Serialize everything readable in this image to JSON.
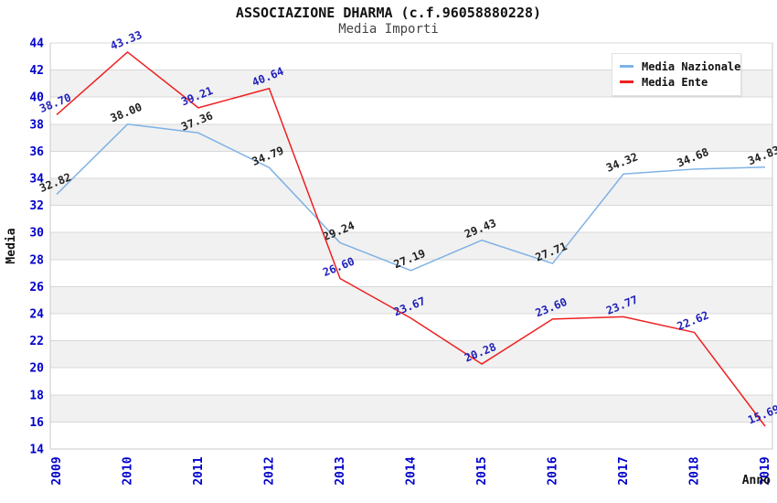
{
  "header": {
    "title": "ASSOCIAZIONE DHARMA (c.f.96058880228)",
    "subtitle": "Media Importi"
  },
  "chart_data": {
    "type": "line",
    "x": [
      "2009",
      "2010",
      "2011",
      "2012",
      "2013",
      "2014",
      "2015",
      "2016",
      "2017",
      "2018",
      "2019"
    ],
    "series": [
      {
        "name": "Media Nazionale",
        "color": "#7fb2e5",
        "label_color": "#1f1f1f",
        "values": [
          32.82,
          38.0,
          37.36,
          34.79,
          29.24,
          27.19,
          29.43,
          27.71,
          34.32,
          34.68,
          34.83
        ]
      },
      {
        "name": "Media Ente",
        "color": "#ee2020",
        "label_color": "#2020bb",
        "values": [
          38.7,
          43.33,
          39.21,
          40.64,
          26.6,
          23.67,
          20.28,
          23.6,
          23.77,
          22.62,
          15.69
        ]
      }
    ],
    "xlabel": "Anno",
    "ylabel": "Media",
    "ylim": [
      14,
      44
    ],
    "ytick_step": 2,
    "grid": true,
    "legend_position": "top-right",
    "axis_tick_color": "#0000cc",
    "axis_title_color": "#111111",
    "grid_color": "#d8d8d8",
    "border_color": "#c9c9c9",
    "band_colors": [
      "#ffffff",
      "#f1f1f1"
    ]
  }
}
